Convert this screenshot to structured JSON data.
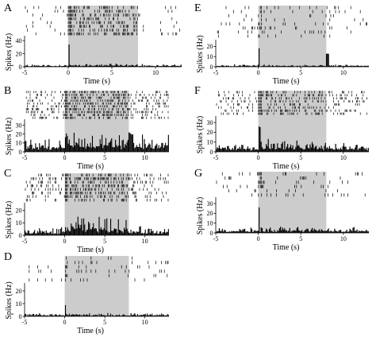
{
  "chart_data": [
    {
      "panel": "A",
      "type": "bar",
      "title": "A",
      "xlabel": "Time (s)",
      "ylabel": "Spikes (Hz)",
      "xlim": [
        -5,
        13
      ],
      "ylim": [
        0,
        45
      ],
      "xticks": [
        -5,
        0,
        5,
        10
      ],
      "yticks": [
        0,
        20,
        40
      ],
      "xtick_labels": [
        "-5",
        "0",
        "5",
        "10"
      ],
      "ytick_labels": [
        "0",
        "20",
        "40"
      ],
      "stimulus": [
        0,
        8
      ],
      "raster_rows": 8,
      "raster_density": [
        0.06,
        0.32
      ],
      "psth_segments": [
        [
          -5,
          0,
          2.0
        ],
        [
          0,
          0.2,
          40
        ],
        [
          0.2,
          8,
          3.0
        ],
        [
          8,
          13,
          2.5
        ]
      ]
    },
    {
      "panel": "B",
      "type": "bar",
      "title": "B",
      "xlabel": "Time (s)",
      "ylabel": "Spikes (Hz)",
      "xlim": [
        -5,
        13
      ],
      "ylim": [
        0,
        35
      ],
      "xticks": [
        -5,
        0,
        5,
        10
      ],
      "yticks": [
        0,
        10,
        20,
        30
      ],
      "xtick_labels": [
        "-5",
        "0",
        "5",
        "10"
      ],
      "ytick_labels": [
        "0",
        "10",
        "20",
        "30"
      ],
      "stimulus": [
        0,
        8
      ],
      "raster_rows": 10,
      "raster_density": [
        0.28,
        0.42
      ],
      "psth_segments": [
        [
          -5,
          0,
          9
        ],
        [
          0,
          3,
          13
        ],
        [
          3,
          8,
          11
        ],
        [
          8,
          8.6,
          22
        ],
        [
          8.6,
          13,
          11
        ]
      ]
    },
    {
      "panel": "C",
      "type": "bar",
      "title": "C",
      "xlabel": "Time (s)",
      "ylabel": "Spikes (Hz)",
      "xlim": [
        -5,
        13
      ],
      "ylim": [
        0,
        25
      ],
      "xticks": [
        -5,
        0,
        5,
        10
      ],
      "yticks": [
        0,
        10,
        20
      ],
      "xtick_labels": [
        "-5",
        "0",
        "5",
        "10"
      ],
      "ytick_labels": [
        "0",
        "10",
        "20"
      ],
      "stimulus": [
        0,
        8
      ],
      "raster_rows": 8,
      "raster_density": [
        0.22,
        0.4
      ],
      "psth_segments": [
        [
          -5,
          0,
          3.5
        ],
        [
          0,
          8,
          8.5
        ],
        [
          8,
          13,
          4
        ]
      ]
    },
    {
      "panel": "D",
      "type": "bar",
      "title": "D",
      "xlabel": "Time (s)",
      "ylabel": "Spikes (Hz)",
      "xlim": [
        -5,
        13
      ],
      "ylim": [
        0,
        25
      ],
      "xticks": [
        -5,
        0,
        5,
        10
      ],
      "yticks": [
        0,
        10,
        20
      ],
      "xtick_labels": [
        "-5",
        "0",
        "5",
        "10"
      ],
      "ytick_labels": [
        "0",
        "10",
        "20"
      ],
      "stimulus": [
        0,
        8
      ],
      "raster_rows": 6,
      "raster_density": [
        0.05,
        0.05
      ],
      "psth_segments": [
        [
          -5,
          0,
          1.5
        ],
        [
          0,
          0.2,
          10
        ],
        [
          0.2,
          13,
          1.5
        ]
      ]
    },
    {
      "panel": "E",
      "type": "bar",
      "title": "E",
      "xlabel": "Time (s)",
      "ylabel": "Spikes (Hz)",
      "xlim": [
        -5,
        13
      ],
      "ylim": [
        0,
        25
      ],
      "xticks": [
        -5,
        0,
        5,
        10
      ],
      "yticks": [
        0,
        10,
        20
      ],
      "xtick_labels": [
        "-5",
        "0",
        "5",
        "10"
      ],
      "ytick_labels": [
        "0",
        "10",
        "20"
      ],
      "stimulus": [
        0,
        8
      ],
      "raster_rows": 8,
      "raster_density": [
        0.09,
        0.06
      ],
      "psth_segments": [
        [
          -5,
          0,
          1.5
        ],
        [
          0,
          0.2,
          20
        ],
        [
          0.2,
          8,
          1.2
        ],
        [
          8,
          8.3,
          14
        ],
        [
          8.3,
          13,
          1.5
        ]
      ]
    },
    {
      "panel": "F",
      "type": "bar",
      "title": "F",
      "xlabel": "Time (s)",
      "ylabel": "Spikes (Hz)",
      "xlim": [
        -5,
        13
      ],
      "ylim": [
        0,
        35
      ],
      "xticks": [
        -5,
        0,
        5,
        10
      ],
      "yticks": [
        0,
        10,
        20,
        30
      ],
      "xtick_labels": [
        "-5",
        "0",
        "5",
        "10"
      ],
      "ytick_labels": [
        "0",
        "10",
        "20",
        "30"
      ],
      "stimulus": [
        0,
        8
      ],
      "raster_rows": 8,
      "raster_density": [
        0.2,
        0.3
      ],
      "psth_segments": [
        [
          -5,
          0,
          5
        ],
        [
          0,
          0.3,
          28
        ],
        [
          0.3,
          8,
          7
        ],
        [
          8,
          13,
          5
        ]
      ]
    },
    {
      "panel": "G",
      "type": "bar",
      "title": "G",
      "xlabel": "Time (s)",
      "ylabel": "Spikes (Hz)",
      "xlim": [
        -5,
        13
      ],
      "ylim": [
        0,
        35
      ],
      "xticks": [
        -5,
        0,
        5,
        10
      ],
      "yticks": [
        0,
        10,
        20,
        30
      ],
      "xtick_labels": [
        "-5",
        "0",
        "5",
        "10"
      ],
      "ytick_labels": [
        "0",
        "10",
        "20",
        "30"
      ],
      "stimulus": [
        0,
        8
      ],
      "raster_rows": 6,
      "raster_density": [
        0.05,
        0.07
      ],
      "psth_segments": [
        [
          -5,
          0,
          3
        ],
        [
          0,
          0.2,
          30
        ],
        [
          0.2,
          13,
          3.5
        ]
      ]
    }
  ],
  "colors": {
    "stimulus_shading": "#cccccc",
    "bars": "#000000",
    "raster": "#000000",
    "axes": "#000000"
  }
}
